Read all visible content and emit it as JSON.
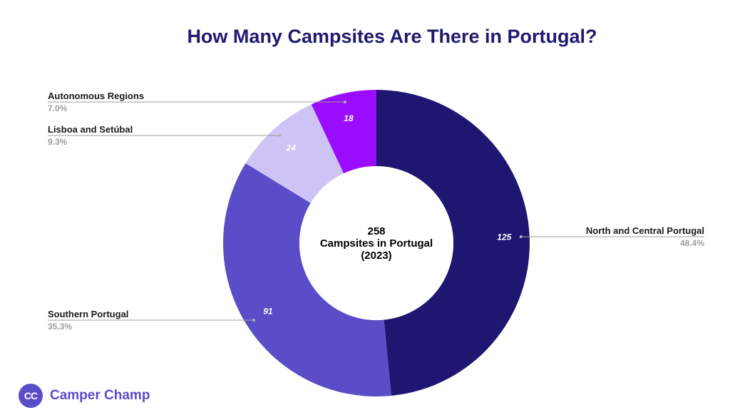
{
  "title": "How Many Campsites Are There in Portugal?",
  "center": {
    "line1": "258",
    "line2": "Campsites in Portugal",
    "line3": "(2023)"
  },
  "brand": {
    "logo_text": "CC",
    "name": "Camper Champ"
  },
  "chart_data": {
    "type": "pie",
    "variant": "donut",
    "title": "How Many Campsites Are There in Portugal?",
    "total": 258,
    "slices": [
      {
        "label": "North and Central Portugal",
        "value": 125,
        "value_label": "125",
        "percent": "48.4%",
        "color": "#1e1670"
      },
      {
        "label": "Southern Portugal",
        "value": 91,
        "value_label": "91",
        "percent": "35.3%",
        "color": "#5b4cc8"
      },
      {
        "label": "Lisboa and Setúbal",
        "value": 24,
        "value_label": "24",
        "percent": "9.3%",
        "color": "#cdc3f5"
      },
      {
        "label": "Autonomous Regions",
        "value": 18,
        "value_label": "18",
        "percent": "7.0%",
        "color": "#9a0cff"
      }
    ]
  }
}
